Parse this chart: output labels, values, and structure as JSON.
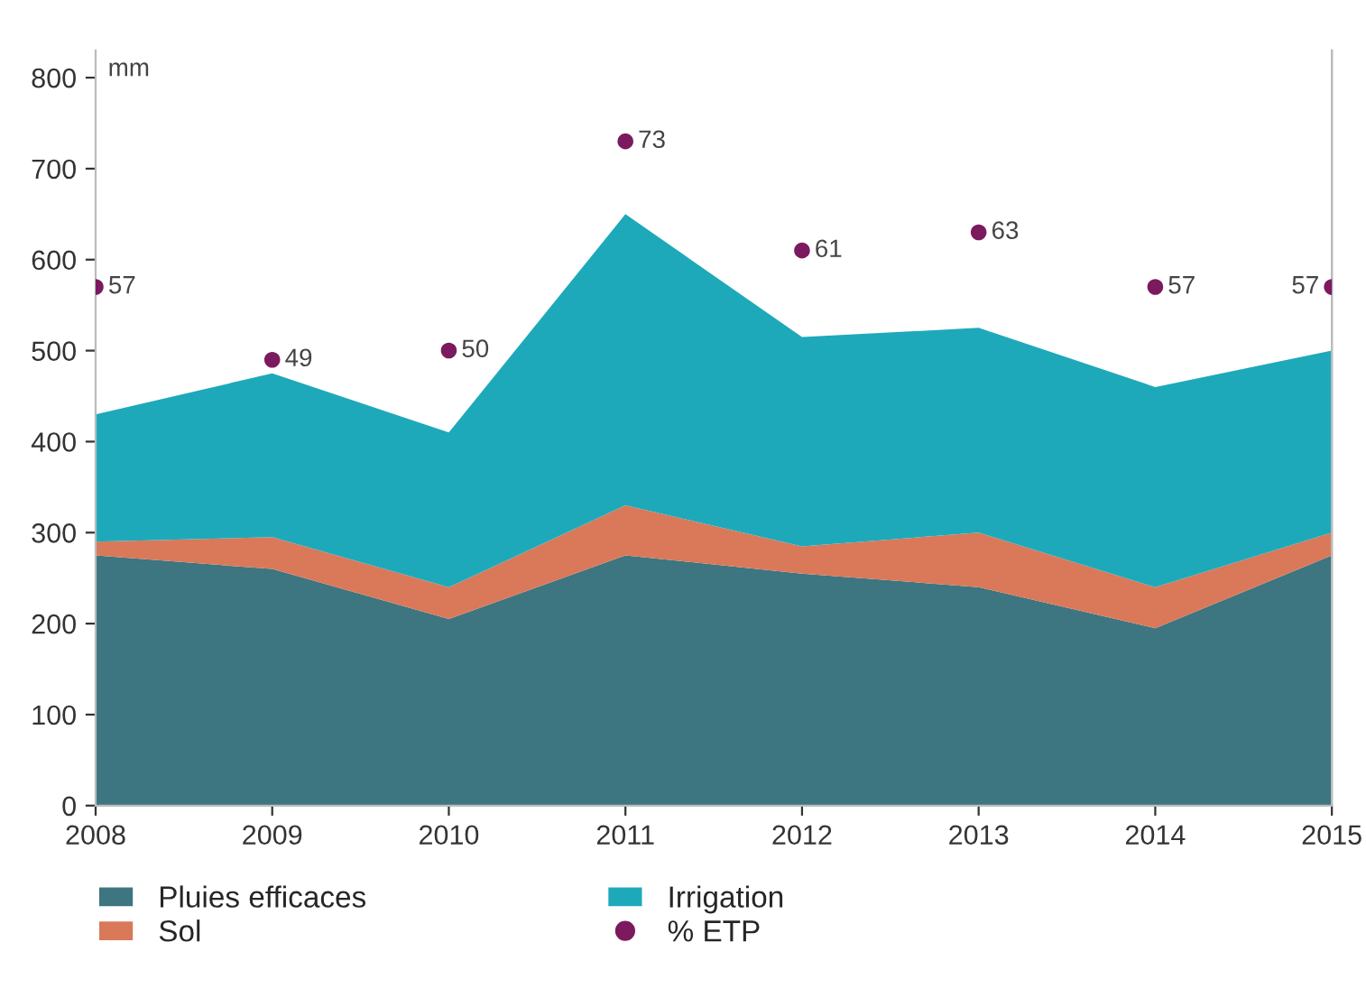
{
  "chart_data": {
    "type": "area",
    "stacked": true,
    "ylabel": "mm",
    "x": [
      2008,
      2009,
      2010,
      2011,
      2012,
      2013,
      2014,
      2015
    ],
    "xlim": [
      2008,
      2015
    ],
    "xticks": [
      2008,
      2009,
      2010,
      2011,
      2012,
      2013,
      2014,
      2015
    ],
    "ylim": [
      0,
      830
    ],
    "yticks": [
      0,
      100,
      200,
      300,
      400,
      500,
      600,
      700,
      800
    ],
    "y2lim": [
      0,
      83
    ],
    "grid": false,
    "legend": "bottom",
    "series": [
      {
        "name": "Pluies efficaces",
        "color": "#3d7580",
        "values": [
          275,
          260,
          205,
          275,
          255,
          240,
          195,
          275
        ]
      },
      {
        "name": "Sol",
        "color": "#d9795a",
        "values": [
          15,
          35,
          35,
          55,
          30,
          60,
          45,
          25
        ]
      },
      {
        "name": "Irrigation",
        "color": "#1ea9ba",
        "values": [
          140,
          180,
          170,
          320,
          230,
          225,
          220,
          200
        ]
      },
      {
        "name": "% ETP",
        "type": "scatter",
        "marker": "circle",
        "color": "#7b1a5e",
        "axis": "y2",
        "values": [
          57,
          49,
          50,
          73,
          61,
          63,
          57,
          57
        ],
        "value_labels": [
          "57",
          "49",
          "50",
          "73",
          "61",
          "63",
          "57",
          "57"
        ]
      }
    ]
  }
}
